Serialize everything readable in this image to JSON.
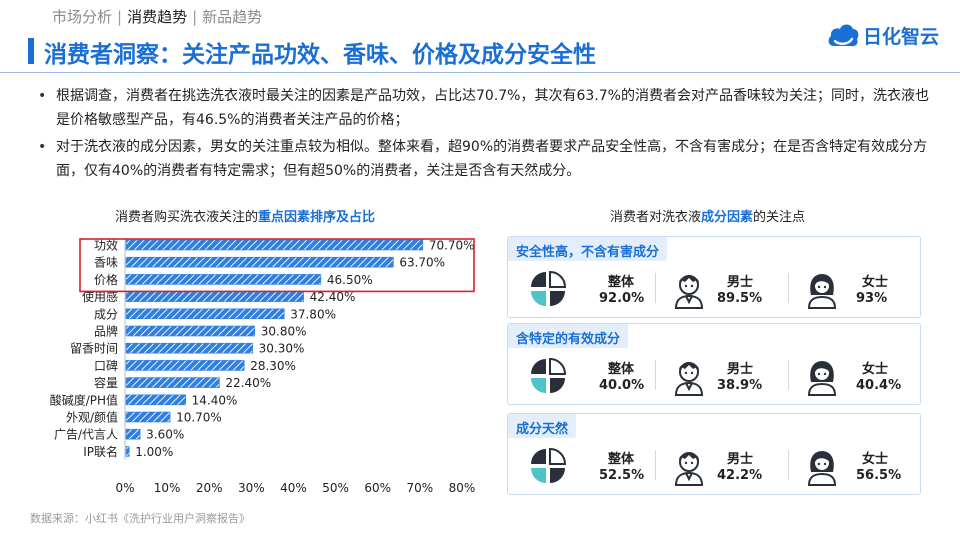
{
  "breadcrumb": {
    "items": [
      "市场分析",
      "消费趋势",
      "新品趋势"
    ],
    "active_index": 1
  },
  "title": "消费者洞察：关注产品功效、香味、价格及成分安全性",
  "logo": {
    "text": "日化智云"
  },
  "bullets": [
    "根据调查，消费者在挑选洗衣液时最关注的因素是产品功效，占比达70.7%，其次有63.7%的消费者会对产品香味较为关注；同时，洗衣液也是价格敏感型产品，有46.5%的消费者关注产品的价格；",
    "对于洗衣液的成分因素，男女的关注重点较为相似。整体来看，超90%的消费者要求产品安全性高，不含有害成分；在是否含特定有效成分方面，仅有40%的消费者有特定需求；但有超50%的消费者，关注是否含有天然成分。"
  ],
  "left_chart_title": {
    "prefix": "消费者购买洗衣液关注的",
    "highlight": "重点因素排序及占比"
  },
  "right_chart_title": {
    "prefix": "消费者对洗衣液",
    "highlight": "成分因素",
    "suffix": "的关注点"
  },
  "chart_data": {
    "type": "bar",
    "orientation": "horizontal",
    "categories": [
      "功效",
      "香味",
      "价格",
      "使用感",
      "成分",
      "品牌",
      "留香时间",
      "口碑",
      "容量",
      "酸碱度/PH值",
      "外观/颜值",
      "广告/代言人",
      "IP联名"
    ],
    "values": [
      70.7,
      63.7,
      46.5,
      42.4,
      37.8,
      30.8,
      30.3,
      28.3,
      22.4,
      14.4,
      10.7,
      3.6,
      1.0
    ],
    "value_labels": [
      "70.70%",
      "63.70%",
      "46.50%",
      "42.40%",
      "37.80%",
      "30.80%",
      "30.30%",
      "28.30%",
      "22.40%",
      "14.40%",
      "10.70%",
      "3.60%",
      "1.00%"
    ],
    "x_ticks": [
      "0%",
      "10%",
      "20%",
      "30%",
      "40%",
      "50%",
      "60%",
      "70%",
      "80%"
    ],
    "xlim": [
      0,
      80
    ],
    "highlighted_categories": [
      "功效",
      "香味",
      "价格"
    ],
    "bar_color": "#2f7fe0",
    "highlight_box_color": "#d6202a",
    "grid": false
  },
  "panels": [
    {
      "title": "安全性高，不含有害成分",
      "overall_label": "整体",
      "overall_value": "92.0%",
      "male_label": "男士",
      "male_value": "89.5%",
      "female_label": "女士",
      "female_value": "93%"
    },
    {
      "title": "含特定的有效成分",
      "overall_label": "整体",
      "overall_value": "40.0%",
      "male_label": "男士",
      "male_value": "38.9%",
      "female_label": "女士",
      "female_value": "40.4%"
    },
    {
      "title": "成分天然",
      "overall_label": "整体",
      "overall_value": "52.5%",
      "male_label": "男士",
      "male_value": "42.2%",
      "female_label": "女士",
      "female_value": "56.5%"
    }
  ],
  "source": "数据来源：小红书《洗护行业用户洞察报告》",
  "colors": {
    "brand_blue": "#1a6fd6",
    "teal": "#4fc3c7",
    "dark": "#2a2f3a"
  }
}
